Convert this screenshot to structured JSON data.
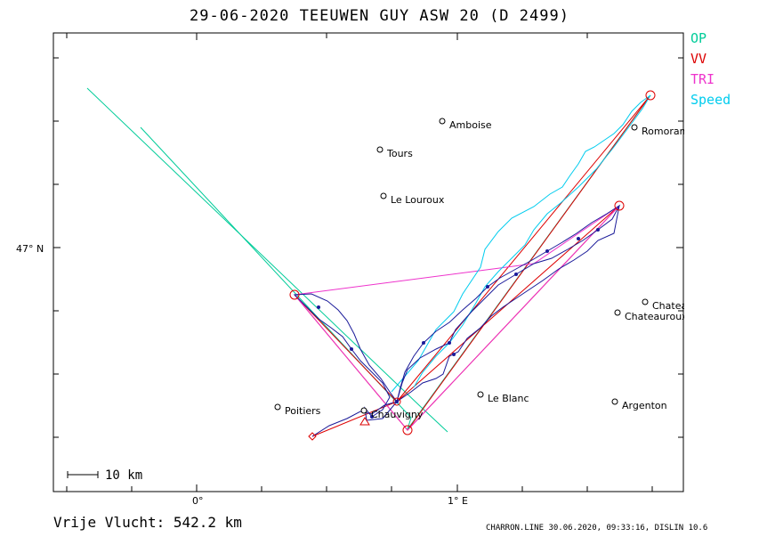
{
  "header": {
    "title": "29-06-2020   TEEUWEN GUY   ASW 20 (D 2499)"
  },
  "legend": [
    {
      "label": "OP",
      "color": "#00cc99"
    },
    {
      "label": "VV",
      "color": "#dd0000"
    },
    {
      "label": "TRI",
      "color": "#ee33cc"
    },
    {
      "label": "Speed",
      "color": "#00ccee"
    }
  ],
  "map": {
    "lat_label": "47° N",
    "lon_labels": [
      "0°",
      "1° E"
    ],
    "scale_label": "10 km",
    "cities": [
      {
        "name": "Amboise"
      },
      {
        "name": "Romorantin"
      },
      {
        "name": "Tours"
      },
      {
        "name": "Le Louroux"
      },
      {
        "name": "Chateauroux"
      },
      {
        "name": "Chateauroux"
      },
      {
        "name": "Le Blanc"
      },
      {
        "name": "Argenton"
      },
      {
        "name": "Poitiers"
      },
      {
        "name": "Chauvigny"
      }
    ]
  },
  "footer": {
    "distance": "Vrije Vlucht:  542.2 km",
    "info": "CHARRON.LINE 30.06.2020, 09:33:16, DISLIN 10.6"
  }
}
